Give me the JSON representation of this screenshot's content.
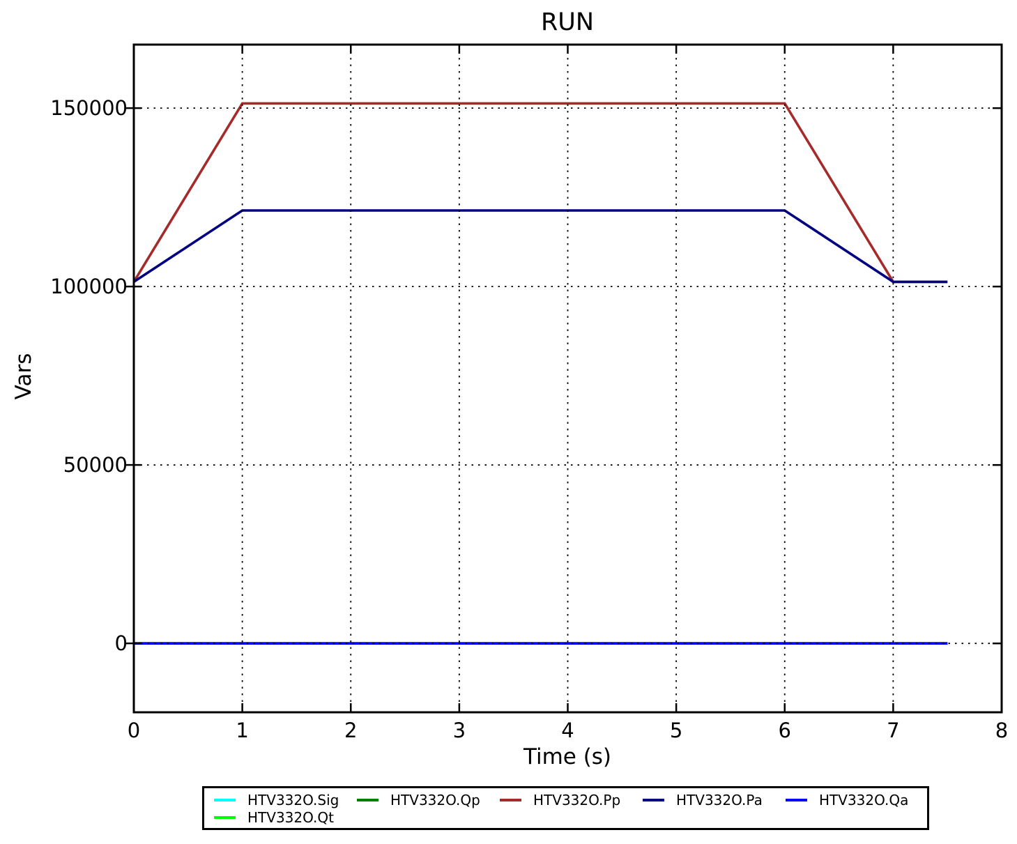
{
  "chart_data": {
    "type": "line",
    "title": "RUN",
    "xlabel": "Time (s)",
    "ylabel": "Vars",
    "xlim": [
      0,
      8
    ],
    "ylim": [
      -19300,
      167800
    ],
    "xticks": [
      {
        "value": 0,
        "label": "0"
      },
      {
        "value": 1,
        "label": "1"
      },
      {
        "value": 2,
        "label": "2"
      },
      {
        "value": 3,
        "label": "3"
      },
      {
        "value": 4,
        "label": "4"
      },
      {
        "value": 5,
        "label": "5"
      },
      {
        "value": 6,
        "label": "6"
      },
      {
        "value": 7,
        "label": "7"
      },
      {
        "value": 8,
        "label": "8"
      }
    ],
    "yticks": [
      {
        "value": 0,
        "label": "0"
      },
      {
        "value": 50000,
        "label": "50000"
      },
      {
        "value": 100000,
        "label": "100000"
      },
      {
        "value": 150000,
        "label": "150000"
      }
    ],
    "grid": {
      "on": true,
      "style": "dotted",
      "color": "#000000",
      "above_data": true
    },
    "axes_color": "#000000",
    "background_color": "#ffffff",
    "series": [
      {
        "name": "HTV332O.Sig",
        "color": "#00FFFF",
        "points": [
          [
            0,
            0
          ],
          [
            7.5,
            0
          ]
        ]
      },
      {
        "name": "HTV332O.Qp",
        "color": "#008000",
        "points": [
          [
            0,
            0
          ],
          [
            7.5,
            0
          ]
        ]
      },
      {
        "name": "HTV332O.Pp",
        "color": "#A52A2A",
        "points": [
          [
            0,
            101325
          ],
          [
            1,
            151325
          ],
          [
            6,
            151325
          ],
          [
            7,
            101325
          ],
          [
            7.5,
            101325
          ]
        ]
      },
      {
        "name": "HTV332O.Pa",
        "color": "#000080",
        "points": [
          [
            0,
            101325
          ],
          [
            1,
            121325
          ],
          [
            6,
            121325
          ],
          [
            7,
            101325
          ],
          [
            7.5,
            101325
          ]
        ]
      },
      {
        "name": "HTV332O.Qa",
        "color": "#0000FF",
        "points": [
          [
            0,
            0
          ],
          [
            7.5,
            0
          ]
        ]
      },
      {
        "name": "HTV332O.Qt",
        "color": "#00FF00",
        "points": [
          [
            0,
            0
          ],
          [
            7.5,
            0
          ]
        ]
      }
    ],
    "draw_order": [
      "HTV332O.Sig",
      "HTV332O.Qp",
      "HTV332O.Qt",
      "HTV332O.Pp",
      "HTV332O.Pa",
      "HTV332O.Qa"
    ],
    "legend": {
      "position": "below-axes",
      "columns": 5,
      "rows": 2,
      "entries": [
        "HTV332O.Sig",
        "HTV332O.Qp",
        "HTV332O.Pp",
        "HTV332O.Pa",
        "HTV332O.Qa",
        "HTV332O.Qt"
      ]
    }
  }
}
